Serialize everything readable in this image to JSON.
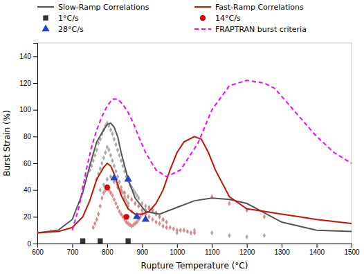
{
  "chart_data": {
    "type": "scatter",
    "xlabel": "Rupture Temperature (°C)",
    "ylabel": "Burst Strain (%)",
    "xlim": [
      600,
      1500
    ],
    "ylim": [
      0,
      150
    ],
    "xticks": [
      600,
      700,
      800,
      900,
      1000,
      1100,
      1200,
      1300,
      1400,
      1500
    ],
    "yticks": [
      0,
      20,
      40,
      60,
      80,
      100,
      120,
      140
    ],
    "grid": false,
    "legend": "top",
    "series": [
      {
        "type": "scatter",
        "marker": "diamond",
        "color": "#aaaaaa",
        "x": [
          730,
          740,
          750,
          755,
          760,
          765,
          770,
          775,
          780,
          785,
          790,
          795,
          800,
          805,
          810,
          815,
          820,
          825,
          830,
          835,
          840,
          845,
          850,
          855,
          860,
          865,
          870,
          875,
          880,
          885,
          890,
          900,
          910,
          920,
          930,
          940,
          950,
          960,
          770,
          775,
          780,
          785,
          790,
          795,
          800,
          805,
          810,
          815,
          820,
          825,
          830,
          835,
          840,
          845,
          850,
          855,
          860,
          870,
          780,
          790,
          800,
          810,
          820,
          830,
          840,
          850,
          860,
          1000,
          1050,
          1100,
          1150,
          1200,
          1250
        ],
        "values": [
          42,
          50,
          55,
          58,
          62,
          66,
          70,
          75,
          78,
          82,
          85,
          88,
          90,
          88,
          85,
          82,
          78,
          74,
          70,
          66,
          62,
          58,
          54,
          50,
          47,
          44,
          42,
          40,
          38,
          36,
          34,
          30,
          28,
          26,
          24,
          22,
          20,
          18,
          48,
          52,
          56,
          60,
          64,
          68,
          72,
          70,
          66,
          62,
          58,
          54,
          50,
          46,
          42,
          38,
          35,
          32,
          28,
          24,
          40,
          44,
          48,
          50,
          46,
          42,
          38,
          34,
          30,
          8,
          10,
          8,
          6,
          5,
          6
        ]
      },
      {
        "type": "scatter",
        "marker": "diamond",
        "color": "#dd8888",
        "x": [
          760,
          765,
          770,
          775,
          780,
          785,
          790,
          795,
          800,
          805,
          810,
          815,
          820,
          825,
          830,
          835,
          840,
          845,
          850,
          855,
          860,
          865,
          870,
          875,
          880,
          885,
          890,
          895,
          900,
          910,
          920,
          930,
          940,
          950,
          960,
          970,
          820,
          830,
          840,
          850,
          860,
          870,
          880,
          890,
          900,
          910,
          920,
          930,
          940,
          950,
          960,
          970,
          980,
          990,
          1000,
          1010,
          1020,
          1030,
          1040,
          1050,
          1100,
          1150,
          1200,
          1250
        ],
        "values": [
          12,
          15,
          18,
          22,
          28,
          34,
          38,
          40,
          42,
          40,
          38,
          36,
          33,
          30,
          27,
          24,
          22,
          20,
          18,
          16,
          15,
          14,
          13,
          14,
          15,
          16,
          18,
          20,
          22,
          25,
          27,
          25,
          23,
          20,
          18,
          16,
          48,
          44,
          40,
          38,
          35,
          33,
          30,
          28,
          25,
          22,
          20,
          18,
          16,
          15,
          13,
          12,
          12,
          11,
          10,
          10,
          10,
          9,
          8,
          8,
          35,
          30,
          25,
          20
        ]
      },
      {
        "name": "Slow-Ramp Correlations",
        "type": "line",
        "line_style": "solid",
        "color": "#555555",
        "x": [
          600,
          660,
          700,
          730,
          750,
          770,
          790,
          800,
          810,
          820,
          830,
          840,
          860,
          880,
          910,
          950,
          1000,
          1050,
          1100,
          1150,
          1200,
          1300,
          1400,
          1500
        ],
        "values": [
          8,
          10,
          18,
          38,
          58,
          76,
          85,
          89,
          90,
          87,
          80,
          68,
          48,
          34,
          24,
          22,
          27,
          32,
          34,
          33,
          30,
          16,
          10,
          9
        ]
      },
      {
        "name": "Fast-Ramp Correlations",
        "type": "line",
        "line_style": "solid",
        "color": "#cc1100",
        "x": [
          600,
          660,
          700,
          730,
          750,
          770,
          790,
          800,
          810,
          820,
          830,
          840,
          860,
          880,
          900,
          920,
          940,
          960,
          980,
          1000,
          1020,
          1050,
          1070,
          1090,
          1110,
          1150,
          1200,
          1250,
          1300,
          1350,
          1400,
          1500
        ],
        "values": [
          8,
          9,
          12,
          20,
          32,
          48,
          57,
          60,
          58,
          52,
          44,
          36,
          26,
          22,
          22,
          24,
          30,
          40,
          55,
          68,
          76,
          80,
          78,
          68,
          55,
          35,
          26,
          24,
          22,
          20,
          18,
          15
        ]
      },
      {
        "name": "1°C/s",
        "type": "scatter",
        "marker": "square",
        "color": "#333333",
        "x": [
          730,
          780,
          860
        ],
        "values": [
          2,
          2,
          2
        ]
      },
      {
        "name": "14°C/s",
        "type": "scatter",
        "marker": "circle",
        "color": "#dd0000",
        "x": [
          800,
          855
        ],
        "values": [
          42,
          20
        ]
      },
      {
        "name": "28°C/s",
        "type": "scatter",
        "marker": "triangle",
        "color": "#2244cc",
        "x": [
          820,
          860,
          885,
          910
        ],
        "values": [
          49,
          48,
          20,
          18
        ]
      },
      {
        "name": "FRAPTRAN burst criteria",
        "type": "line",
        "line_style": "dashed",
        "color": "#ff00ff",
        "x": [
          700,
          720,
          740,
          755,
          770,
          785,
          800,
          815,
          830,
          845,
          860,
          875,
          890,
          910,
          940,
          970,
          1010,
          1060,
          1100,
          1150,
          1200,
          1250,
          1280,
          1300,
          1350,
          1400,
          1450,
          1500
        ],
        "values": [
          10,
          28,
          55,
          72,
          85,
          95,
          103,
          108,
          108,
          104,
          98,
          90,
          80,
          68,
          55,
          50,
          55,
          75,
          100,
          118,
          122,
          120,
          116,
          110,
          95,
          80,
          68,
          60
        ]
      }
    ]
  }
}
